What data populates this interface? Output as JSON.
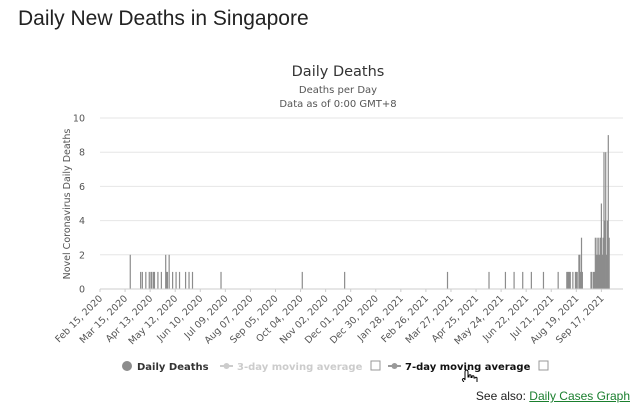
{
  "page": {
    "title": "Daily New Deaths in Singapore",
    "see_also_prefix": "See also:",
    "see_also_link": "Daily Cases Graph"
  },
  "colors": {
    "bar": "#8c8c8c",
    "grid": "#e6e6e6",
    "axis_text": "#555555",
    "legend_inactive": "#cccccc",
    "link": "#1a7f2e"
  },
  "chart_data": {
    "type": "bar",
    "title": "Daily Deaths",
    "subtitle_lines": [
      "Deaths per Day",
      "Data as of 0:00 GMT+8"
    ],
    "xlabel": "",
    "ylabel": "Novel Coronavirus Daily Deaths",
    "ylim": [
      0,
      10
    ],
    "yticks": [
      0,
      2,
      4,
      6,
      8,
      10
    ],
    "grid": true,
    "x_start": "2020-02-15",
    "x_end": "2021-10-12",
    "xtick_labels": [
      "Feb 15, 2020",
      "Mar 15, 2020",
      "Apr 13, 2020",
      "May 12, 2020",
      "Jun 10, 2020",
      "Jul 09, 2020",
      "Aug 07, 2020",
      "Sep 05, 2020",
      "Oct 04, 2020",
      "Nov 02, 2020",
      "Dec 01, 2020",
      "Dec 30, 2020",
      "Jan 28, 2021",
      "Feb 26, 2021",
      "Mar 27, 2021",
      "Apr 25, 2021",
      "May 24, 2021",
      "Jun 22, 2021",
      "Jul 21, 2021",
      "Aug 19, 2021",
      "Sep 17, 2021"
    ],
    "series": [
      {
        "name": "Daily Deaths",
        "points": [
          [
            "2020-03-21",
            2
          ],
          [
            "2020-04-02",
            1
          ],
          [
            "2020-04-04",
            1
          ],
          [
            "2020-04-08",
            1
          ],
          [
            "2020-04-12",
            1
          ],
          [
            "2020-04-14",
            1
          ],
          [
            "2020-04-15",
            1
          ],
          [
            "2020-04-17",
            1
          ],
          [
            "2020-04-18",
            1
          ],
          [
            "2020-04-22",
            1
          ],
          [
            "2020-04-26",
            1
          ],
          [
            "2020-05-01",
            2
          ],
          [
            "2020-05-02",
            1
          ],
          [
            "2020-05-03",
            1
          ],
          [
            "2020-05-05",
            2
          ],
          [
            "2020-05-09",
            1
          ],
          [
            "2020-05-13",
            1
          ],
          [
            "2020-05-17",
            1
          ],
          [
            "2020-05-24",
            1
          ],
          [
            "2020-05-28",
            1
          ],
          [
            "2020-06-01",
            1
          ],
          [
            "2020-07-04",
            1
          ],
          [
            "2020-10-06",
            1
          ],
          [
            "2020-11-24",
            1
          ],
          [
            "2021-03-23",
            1
          ],
          [
            "2021-05-10",
            1
          ],
          [
            "2021-05-29",
            1
          ],
          [
            "2021-06-08",
            1
          ],
          [
            "2021-06-18",
            1
          ],
          [
            "2021-06-28",
            1
          ],
          [
            "2021-07-12",
            1
          ],
          [
            "2021-07-29",
            1
          ],
          [
            "2021-08-08",
            1
          ],
          [
            "2021-08-09",
            1
          ],
          [
            "2021-08-10",
            1
          ],
          [
            "2021-08-11",
            1
          ],
          [
            "2021-08-12",
            1
          ],
          [
            "2021-08-15",
            1
          ],
          [
            "2021-08-18",
            1
          ],
          [
            "2021-08-19",
            1
          ],
          [
            "2021-08-20",
            1
          ],
          [
            "2021-08-22",
            2
          ],
          [
            "2021-08-23",
            2
          ],
          [
            "2021-08-24",
            1
          ],
          [
            "2021-08-25",
            3
          ],
          [
            "2021-08-26",
            1
          ],
          [
            "2021-09-05",
            1
          ],
          [
            "2021-09-06",
            1
          ],
          [
            "2021-09-08",
            1
          ],
          [
            "2021-09-09",
            1
          ],
          [
            "2021-09-10",
            3
          ],
          [
            "2021-09-11",
            2
          ],
          [
            "2021-09-12",
            3
          ],
          [
            "2021-09-13",
            2
          ],
          [
            "2021-09-14",
            3
          ],
          [
            "2021-09-15",
            2
          ],
          [
            "2021-09-16",
            3
          ],
          [
            "2021-09-17",
            5
          ],
          [
            "2021-09-18",
            2
          ],
          [
            "2021-09-19",
            3
          ],
          [
            "2021-09-20",
            8
          ],
          [
            "2021-09-21",
            4
          ],
          [
            "2021-09-22",
            8
          ],
          [
            "2021-09-23",
            2
          ],
          [
            "2021-09-24",
            4
          ],
          [
            "2021-09-25",
            9
          ],
          [
            "2021-09-26",
            3
          ]
        ]
      }
    ],
    "legend": {
      "placement": "bottom",
      "items": [
        {
          "label": "Daily Deaths",
          "active": true,
          "marker": "circle"
        },
        {
          "label": "3-day moving average",
          "active": false,
          "marker": "line-dot",
          "checkbox": true
        },
        {
          "label": "7-day moving average",
          "active": true,
          "marker": "line-dot",
          "checkbox": true
        }
      ]
    }
  }
}
